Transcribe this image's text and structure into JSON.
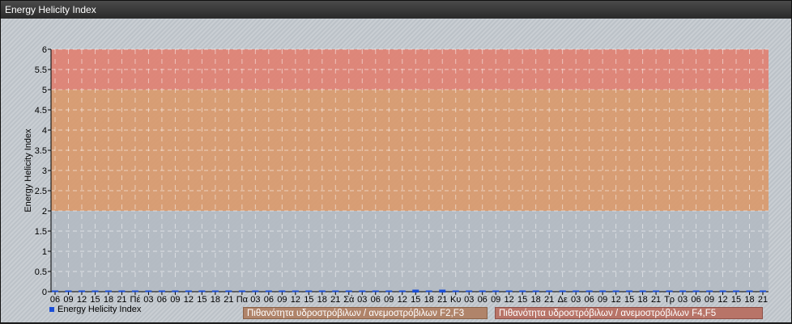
{
  "window": {
    "title": "Energy Helicity Index"
  },
  "chart_data": {
    "type": "line",
    "title": "",
    "ylabel": "Energy Helicity Index",
    "xlabel": "",
    "ylim": [
      0,
      6
    ],
    "yticks": [
      "0",
      "0.5",
      "1",
      "1.5",
      "2",
      "2.5",
      "3",
      "3.5",
      "4",
      "4.5",
      "5",
      "5.5",
      "6"
    ],
    "grid": true,
    "x": [
      "06",
      "09",
      "12",
      "15",
      "18",
      "21",
      "Πέ",
      "03",
      "06",
      "09",
      "12",
      "15",
      "18",
      "21",
      "Πα",
      "03",
      "06",
      "09",
      "12",
      "15",
      "18",
      "21",
      "Σά",
      "03",
      "06",
      "09",
      "12",
      "15",
      "18",
      "21",
      "Κυ",
      "03",
      "06",
      "09",
      "12",
      "15",
      "18",
      "21",
      "Δε",
      "03",
      "06",
      "09",
      "12",
      "15",
      "18",
      "21",
      "Τρ",
      "03",
      "06",
      "09",
      "12",
      "15",
      "18",
      "21"
    ],
    "series": [
      {
        "name": "Energy Helicity Index",
        "color": "#1a4ed8",
        "values": [
          0,
          0,
          0,
          0,
          0,
          0,
          0,
          0,
          0,
          0,
          0,
          0,
          0,
          0,
          0,
          0,
          0,
          0,
          0,
          0,
          0,
          0,
          0,
          0,
          0,
          0,
          0,
          0.02,
          0,
          0.02,
          0,
          0,
          0,
          0,
          0,
          0,
          0,
          0,
          0,
          0,
          0,
          0,
          0,
          0,
          0,
          0,
          0,
          0,
          0,
          0,
          0,
          0,
          0,
          0
        ]
      }
    ],
    "bands": [
      {
        "from": 0,
        "to": 2,
        "color": "#b3bac2"
      },
      {
        "from": 2,
        "to": 5,
        "color": "#d9996a",
        "label": "Πιθανότητα υδροστρόβιλων / ανεμοστρόβιλων F2,F3"
      },
      {
        "from": 5,
        "to": 6,
        "color": "#e08070",
        "label": "Πιθανότητα υδροστρόβιλων / ανεμοστρόβιλων F4,F5"
      }
    ],
    "legend_position": "bottom-left"
  }
}
